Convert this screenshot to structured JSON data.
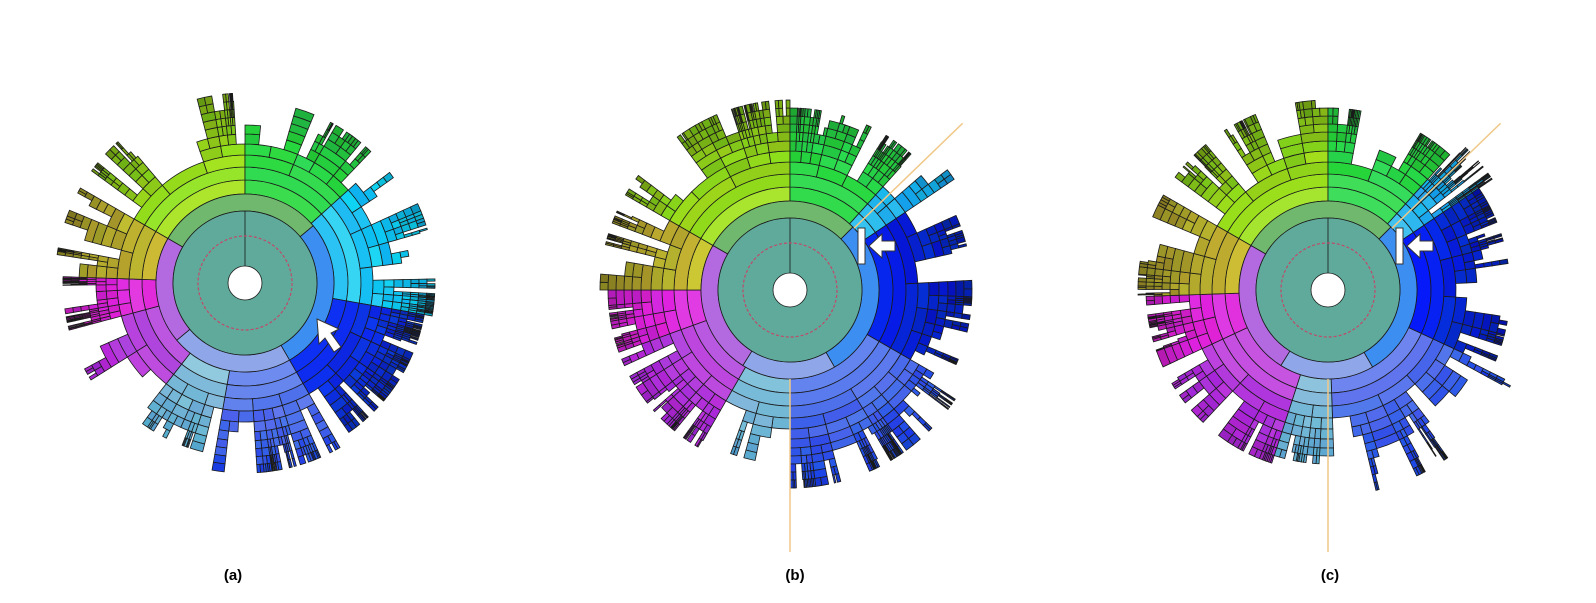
{
  "figure": {
    "panels": [
      {
        "label": "(a)",
        "guide_lines": false,
        "arrow_style": "pointer",
        "guide_color": "#f0c888",
        "border_color": "#1a1a1a",
        "ring_color": "#c04a6a",
        "inner_fill": "#5faa9a"
      },
      {
        "label": "(b)",
        "guide_lines": true,
        "arrow_style": "bar-arrow",
        "guide_color": "#f0c888",
        "border_color": "#1a1a1a",
        "ring_color": "#c04a6a",
        "inner_fill": "#5faa9a"
      },
      {
        "label": "(c)",
        "guide_lines": true,
        "arrow_style": "bar-arrow",
        "guide_color": "#f0c888",
        "border_color": "#1a1a1a",
        "ring_color": "#c04a6a",
        "inner_fill": "#5faa9a"
      }
    ]
  }
}
